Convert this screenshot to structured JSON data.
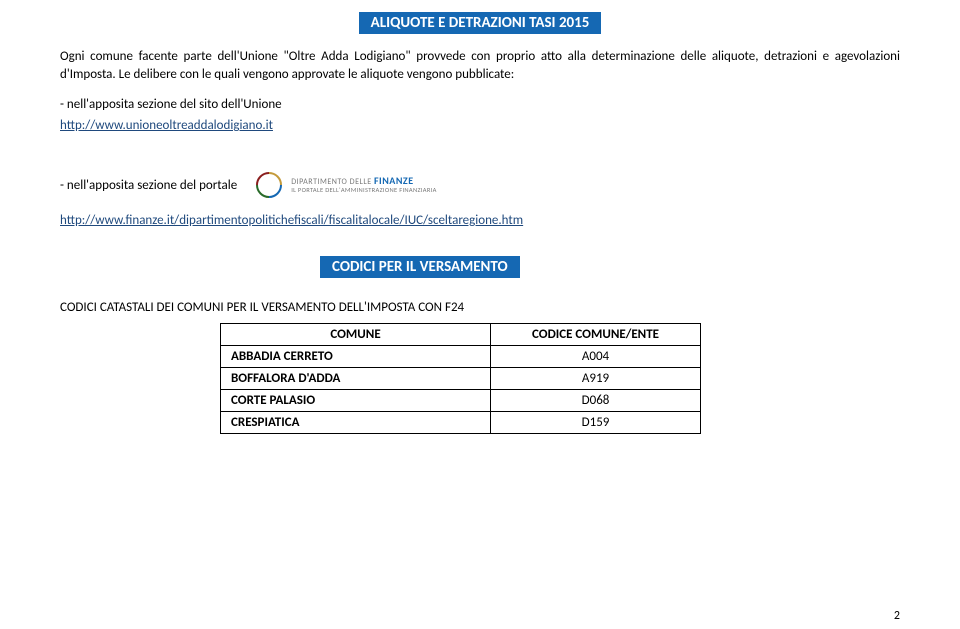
{
  "banner1": "ALIQUOTE E DETRAZIONI TASI 2015",
  "intro": "Ogni comune facente parte dell'Unione \"Oltre Adda Lodigiano\" provvede con proprio atto alla determinazione delle aliquote, detrazioni e agevolazioni d'Imposta. Le delibere con le quali vengono approvate le aliquote vengono pubblicate:",
  "bullet1": "- nell'apposita sezione del sito dell'Unione",
  "link1": "http://www.unioneoltreaddalodigiano.it",
  "bullet2": "- nell'apposita sezione del portale",
  "logo_line1a": "DIPARTIMENTO DELLE ",
  "logo_line1b": "FINANZE",
  "logo_line2": "IL PORTALE DELL'AMMINISTRAZIONE FINANZIARIA",
  "link2": "http://www.finanze.it/dipartimentopolitichefiscali/fiscalitalocale/IUC/sceltaregione.htm",
  "banner2": "CODICI PER IL VERSAMENTO",
  "subhead": "CODICI CATASTALI DEI COMUNI PER IL VERSAMENTO  DELL'IMPOSTA CON F24",
  "table": {
    "col1": "COMUNE",
    "col2": "CODICE COMUNE/ENTE",
    "rows": [
      {
        "name": "ABBADIA CERRETO",
        "code": "A004"
      },
      {
        "name": "BOFFALORA D'ADDA",
        "code": "A919"
      },
      {
        "name": "CORTE PALASIO",
        "code": "D068"
      },
      {
        "name": "CRESPIATICA",
        "code": "D159"
      }
    ]
  },
  "pagenum": "2",
  "colors": {
    "banner_bg": "#1568b3",
    "banner_fg": "#ffffff",
    "link": "#1f497d",
    "text": "#000000"
  }
}
